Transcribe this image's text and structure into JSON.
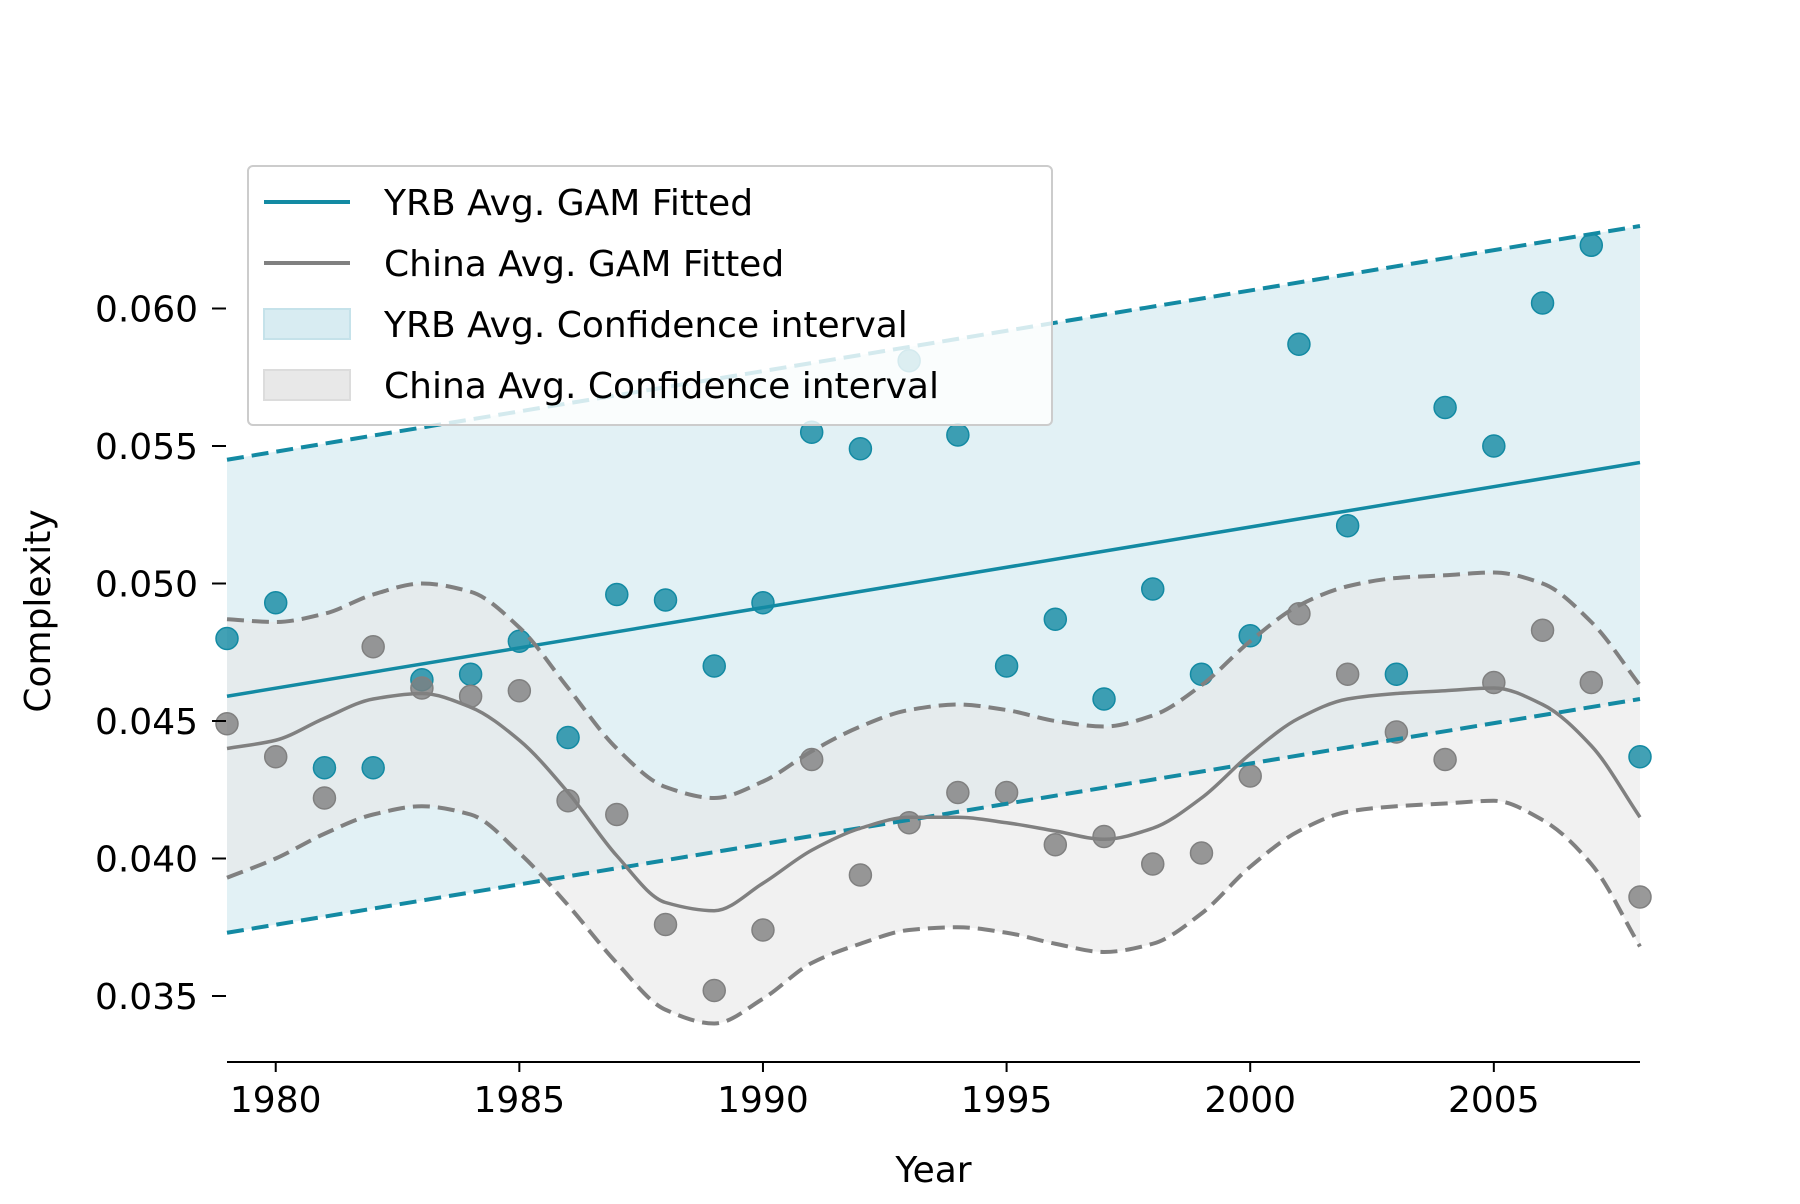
{
  "chart_data": {
    "type": "scatter",
    "xlabel": "Year",
    "ylabel": "Complexity",
    "xlim": [
      1979,
      2008
    ],
    "ylim": [
      0.0326,
      0.0654
    ],
    "xticks": [
      1980,
      1985,
      1990,
      1995,
      2000,
      2005
    ],
    "yticks": [
      0.035,
      0.04,
      0.045,
      0.05,
      0.055,
      0.06
    ],
    "ytick_labels": [
      "0.035",
      "0.040",
      "0.045",
      "0.050",
      "0.055",
      "0.060"
    ],
    "legend_position": "top-left",
    "colors": {
      "yrb": "#138aa3",
      "china": "#808080",
      "yrb_band": "#d8ecf2",
      "china_band": "#e8e8e8"
    },
    "legend": [
      {
        "label": "YRB Avg. GAM Fitted",
        "kind": "line",
        "series": "yrb"
      },
      {
        "label": "China Avg. GAM Fitted",
        "kind": "line",
        "series": "china"
      },
      {
        "label": "YRB Avg. Confidence interval",
        "kind": "patch",
        "series": "yrb"
      },
      {
        "label": "China Avg. Confidence interval",
        "kind": "patch",
        "series": "china"
      }
    ],
    "series": [
      {
        "key": "yrb",
        "x": [
          1979,
          1980,
          1981,
          1982,
          1983,
          1984,
          1985,
          1986,
          1987,
          1988,
          1989,
          1990,
          1991,
          1992,
          1993,
          1994,
          1995,
          1996,
          1997,
          1998,
          1999,
          2000,
          2001,
          2002,
          2003,
          2004,
          2005,
          2006,
          2007,
          2008
        ],
        "y": [
          0.048,
          0.0493,
          0.0433,
          0.0433,
          0.0465,
          0.0467,
          0.0479,
          0.0444,
          0.0496,
          0.0494,
          0.047,
          0.0493,
          0.0555,
          0.0549,
          0.0581,
          0.0554,
          0.047,
          0.0487,
          0.0458,
          0.0498,
          0.0467,
          0.0481,
          0.0587,
          0.0521,
          0.0467,
          0.0564,
          0.055,
          0.0602,
          0.0623,
          0.0437
        ],
        "fit": {
          "x": [
            1979,
            2008
          ],
          "y": [
            0.0459,
            0.0544
          ]
        },
        "ci_upper": {
          "x": [
            1979,
            2008
          ],
          "y": [
            0.0545,
            0.063
          ]
        },
        "ci_lower": {
          "x": [
            1979,
            2008
          ],
          "y": [
            0.0373,
            0.0458
          ]
        }
      },
      {
        "key": "china",
        "x": [
          1979,
          1980,
          1981,
          1982,
          1983,
          1984,
          1985,
          1986,
          1987,
          1988,
          1989,
          1990,
          1991,
          1992,
          1993,
          1994,
          1995,
          1996,
          1997,
          1998,
          1999,
          2000,
          2001,
          2002,
          2003,
          2004,
          2005,
          2006,
          2007,
          2008
        ],
        "y": [
          0.0449,
          0.0437,
          0.0422,
          0.0477,
          0.0462,
          0.0459,
          0.0461,
          0.0421,
          0.0416,
          0.0376,
          0.0352,
          0.0374,
          0.0436,
          0.0394,
          0.0413,
          0.0424,
          0.0424,
          0.0405,
          0.0408,
          0.0398,
          0.0402,
          0.043,
          0.0489,
          0.0467,
          0.0446,
          0.0436,
          0.0464,
          0.0483,
          0.0464,
          0.0386
        ],
        "fit": {
          "x": [
            1979,
            1980,
            1981,
            1982,
            1983,
            1984,
            1985,
            1986,
            1987,
            1988,
            1989,
            1990,
            1991,
            1992,
            1993,
            1994,
            1995,
            1996,
            1997,
            1998,
            1999,
            2000,
            2001,
            2002,
            2003,
            2004,
            2005,
            2006,
            2007,
            2008
          ],
          "y": [
            0.044,
            0.0443,
            0.0451,
            0.0458,
            0.046,
            0.0455,
            0.0443,
            0.0424,
            0.0401,
            0.0384,
            0.0381,
            0.0391,
            0.0403,
            0.0411,
            0.0415,
            0.0415,
            0.0413,
            0.041,
            0.0407,
            0.0411,
            0.0422,
            0.0438,
            0.0451,
            0.0458,
            0.046,
            0.0461,
            0.0462,
            0.0456,
            0.0441,
            0.0415
          ]
        },
        "ci_upper": {
          "x": [
            1979,
            1980,
            1981,
            1982,
            1983,
            1984,
            1985,
            1986,
            1987,
            1988,
            1989,
            1990,
            1991,
            1992,
            1993,
            1994,
            1995,
            1996,
            1997,
            1998,
            1999,
            2000,
            2001,
            2002,
            2003,
            2004,
            2005,
            2006,
            2007,
            2008
          ],
          "y": [
            0.0487,
            0.0486,
            0.0489,
            0.0496,
            0.05,
            0.0497,
            0.0484,
            0.0462,
            0.044,
            0.0426,
            0.0422,
            0.0428,
            0.0439,
            0.0448,
            0.0454,
            0.0456,
            0.0454,
            0.045,
            0.0448,
            0.0452,
            0.0463,
            0.0479,
            0.0492,
            0.0499,
            0.0502,
            0.0503,
            0.0504,
            0.05,
            0.0486,
            0.0463
          ]
        },
        "ci_lower": {
          "x": [
            1979,
            1980,
            1981,
            1982,
            1983,
            1984,
            1985,
            1986,
            1987,
            1988,
            1989,
            1990,
            1991,
            1992,
            1993,
            1994,
            1995,
            1996,
            1997,
            1998,
            1999,
            2000,
            2001,
            2002,
            2003,
            2004,
            2005,
            2006,
            2007,
            2008
          ],
          "y": [
            0.0393,
            0.04,
            0.0409,
            0.0416,
            0.0419,
            0.0416,
            0.0402,
            0.0383,
            0.0362,
            0.0345,
            0.034,
            0.0349,
            0.0362,
            0.0369,
            0.0374,
            0.0375,
            0.0373,
            0.0369,
            0.0366,
            0.0369,
            0.038,
            0.0397,
            0.041,
            0.0417,
            0.0419,
            0.042,
            0.0421,
            0.0414,
            0.0398,
            0.0368
          ]
        }
      }
    ]
  }
}
